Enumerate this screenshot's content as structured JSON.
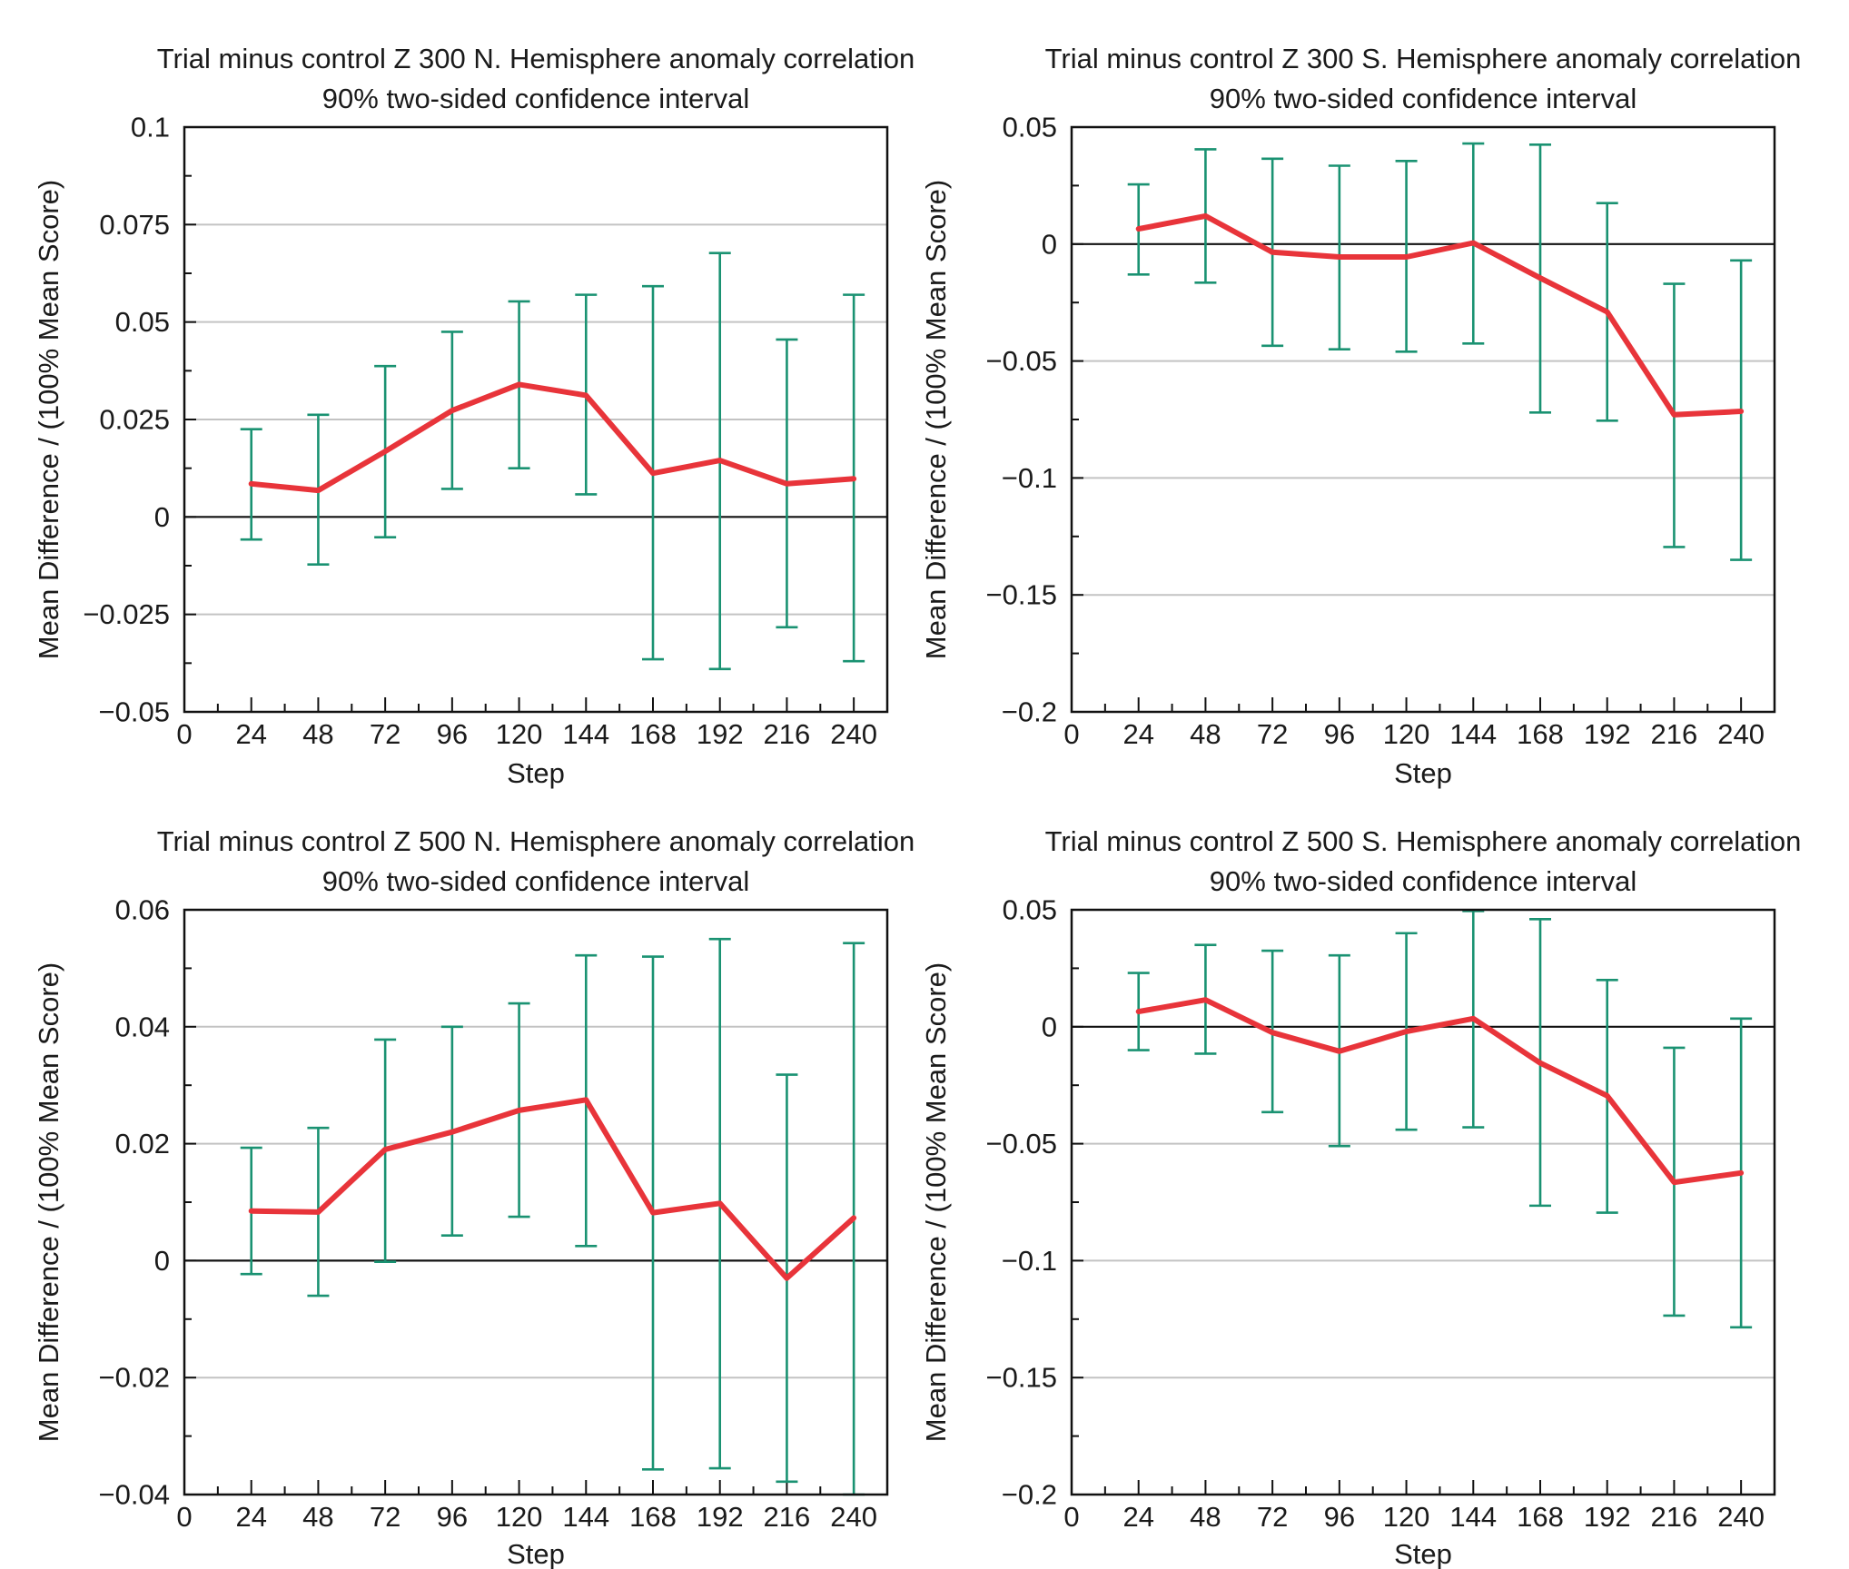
{
  "colors": {
    "mean_line": "#e8343a",
    "error_bar": "#1a9272",
    "gridline": "#c3c3c3",
    "zero_line": "#111111",
    "frame": "#111111"
  },
  "chart_data": [
    {
      "type": "line",
      "title": "Trial minus control Z 300 N. Hemisphere anomaly correlation",
      "subtitle": "90% two-sided confidence interval",
      "xlabel": "Step",
      "ylabel": "Mean Difference /  (100% Mean Score)",
      "xlim": [
        0,
        252
      ],
      "ylim": [
        -0.05,
        0.1
      ],
      "x_ticks": [
        0,
        24,
        48,
        72,
        96,
        120,
        144,
        168,
        192,
        216,
        240
      ],
      "x_tick_labels": [
        "0",
        "24",
        "48",
        "72",
        "96",
        "120",
        "144",
        "168",
        "192",
        "216",
        "240"
      ],
      "y_ticks": [
        -0.05,
        -0.025,
        0,
        0.025,
        0.05,
        0.075,
        0.1
      ],
      "y_tick_labels": [
        "−0.05",
        "−0.025",
        "0",
        "0.025",
        "0.05",
        "0.075",
        "0.1"
      ],
      "y_minor_ticks": [
        -0.0375,
        -0.0125,
        0.0125,
        0.0375,
        0.0625,
        0.0875
      ],
      "grid": "horizontal at major ticks",
      "x": [
        24,
        48,
        72,
        96,
        120,
        144,
        168,
        192,
        216,
        240
      ],
      "series": [
        {
          "values": [
            0.0085,
            0.0068,
            0.0168,
            0.0273,
            0.034,
            0.0312,
            0.0112,
            0.0145,
            0.0085,
            0.0098
          ],
          "lower": [
            -0.0058,
            -0.0122,
            -0.0052,
            0.0072,
            0.0125,
            0.0058,
            -0.0365,
            -0.039,
            -0.0283,
            -0.037
          ],
          "upper": [
            0.0225,
            0.0262,
            0.0387,
            0.0475,
            0.0553,
            0.057,
            0.0592,
            0.0677,
            0.0455,
            0.057
          ]
        }
      ]
    },
    {
      "type": "line",
      "title": "Trial minus control Z 300 S. Hemisphere anomaly correlation",
      "subtitle": "90% two-sided confidence interval",
      "xlabel": "Step",
      "ylabel": "Mean Difference /  (100% Mean Score)",
      "xlim": [
        0,
        252
      ],
      "ylim": [
        -0.2,
        0.05
      ],
      "x_ticks": [
        0,
        24,
        48,
        72,
        96,
        120,
        144,
        168,
        192,
        216,
        240
      ],
      "x_tick_labels": [
        "0",
        "24",
        "48",
        "72",
        "96",
        "120",
        "144",
        "168",
        "192",
        "216",
        "240"
      ],
      "y_ticks": [
        -0.2,
        -0.15,
        -0.1,
        -0.05,
        0,
        0.05
      ],
      "y_tick_labels": [
        "−0.2",
        "−0.15",
        "−0.1",
        "−0.05",
        "0",
        "0.05"
      ],
      "y_minor_ticks": [
        -0.175,
        -0.125,
        -0.075,
        -0.025,
        0.025
      ],
      "grid": "horizontal at major ticks",
      "x": [
        24,
        48,
        72,
        96,
        120,
        144,
        168,
        192,
        216,
        240
      ],
      "series": [
        {
          "values": [
            0.0065,
            0.012,
            -0.0035,
            -0.0055,
            -0.0055,
            0.0005,
            -0.0145,
            -0.029,
            -0.073,
            -0.0715
          ],
          "lower": [
            -0.013,
            -0.0165,
            -0.0435,
            -0.045,
            -0.046,
            -0.0425,
            -0.072,
            -0.0755,
            -0.1295,
            -0.135
          ],
          "upper": [
            0.0255,
            0.0405,
            0.0365,
            0.0335,
            0.0355,
            0.043,
            0.0425,
            0.0175,
            -0.017,
            -0.007
          ]
        }
      ]
    },
    {
      "type": "line",
      "title": "Trial minus control Z 500 N. Hemisphere anomaly correlation",
      "subtitle": "90% two-sided confidence interval",
      "xlabel": "Step",
      "ylabel": "Mean Difference /  (100% Mean Score)",
      "xlim": [
        0,
        252
      ],
      "ylim": [
        -0.04,
        0.06
      ],
      "x_ticks": [
        0,
        24,
        48,
        72,
        96,
        120,
        144,
        168,
        192,
        216,
        240
      ],
      "x_tick_labels": [
        "0",
        "24",
        "48",
        "72",
        "96",
        "120",
        "144",
        "168",
        "192",
        "216",
        "240"
      ],
      "y_ticks": [
        -0.04,
        -0.02,
        0,
        0.02,
        0.04,
        0.06
      ],
      "y_tick_labels": [
        "−0.04",
        "−0.02",
        "0",
        "0.02",
        "0.04",
        "0.06"
      ],
      "y_minor_ticks": [
        -0.03,
        -0.01,
        0.01,
        0.03,
        0.05
      ],
      "grid": "horizontal at major ticks",
      "x": [
        24,
        48,
        72,
        96,
        120,
        144,
        168,
        192,
        216,
        240
      ],
      "series": [
        {
          "values": [
            0.0085,
            0.0083,
            0.019,
            0.022,
            0.0257,
            0.0275,
            0.0082,
            0.0098,
            -0.003,
            0.0073
          ],
          "lower": [
            -0.0023,
            -0.006,
            -0.0002,
            0.0043,
            0.0075,
            0.0025,
            -0.0357,
            -0.0355,
            -0.0378,
            -0.04
          ],
          "upper": [
            0.0193,
            0.0227,
            0.0378,
            0.04,
            0.044,
            0.0522,
            0.052,
            0.055,
            0.0318,
            0.0543
          ]
        }
      ]
    },
    {
      "type": "line",
      "title": "Trial minus control Z 500 S. Hemisphere anomaly correlation",
      "subtitle": "90% two-sided confidence interval",
      "xlabel": "Step",
      "ylabel": "Mean Difference /  (100% Mean Score)",
      "xlim": [
        0,
        252
      ],
      "ylim": [
        -0.2,
        0.05
      ],
      "x_ticks": [
        0,
        24,
        48,
        72,
        96,
        120,
        144,
        168,
        192,
        216,
        240
      ],
      "x_tick_labels": [
        "0",
        "24",
        "48",
        "72",
        "96",
        "120",
        "144",
        "168",
        "192",
        "216",
        "240"
      ],
      "y_ticks": [
        -0.2,
        -0.15,
        -0.1,
        -0.05,
        0,
        0.05
      ],
      "y_tick_labels": [
        "−0.2",
        "−0.15",
        "−0.1",
        "−0.05",
        "0",
        "0.05"
      ],
      "y_minor_ticks": [
        -0.175,
        -0.125,
        -0.075,
        -0.025,
        0.025
      ],
      "grid": "horizontal at major ticks",
      "x": [
        24,
        48,
        72,
        96,
        120,
        144,
        168,
        192,
        216,
        240
      ],
      "series": [
        {
          "values": [
            0.0065,
            0.0115,
            -0.0025,
            -0.0105,
            -0.002,
            0.0035,
            -0.0155,
            -0.0295,
            -0.0665,
            -0.0625
          ],
          "lower": [
            -0.01,
            -0.0115,
            -0.0365,
            -0.051,
            -0.044,
            -0.043,
            -0.0765,
            -0.0795,
            -0.1235,
            -0.1285
          ],
          "upper": [
            0.023,
            0.035,
            0.0325,
            0.0305,
            0.04,
            0.0495,
            0.046,
            0.02,
            -0.009,
            0.0035
          ]
        }
      ]
    }
  ]
}
